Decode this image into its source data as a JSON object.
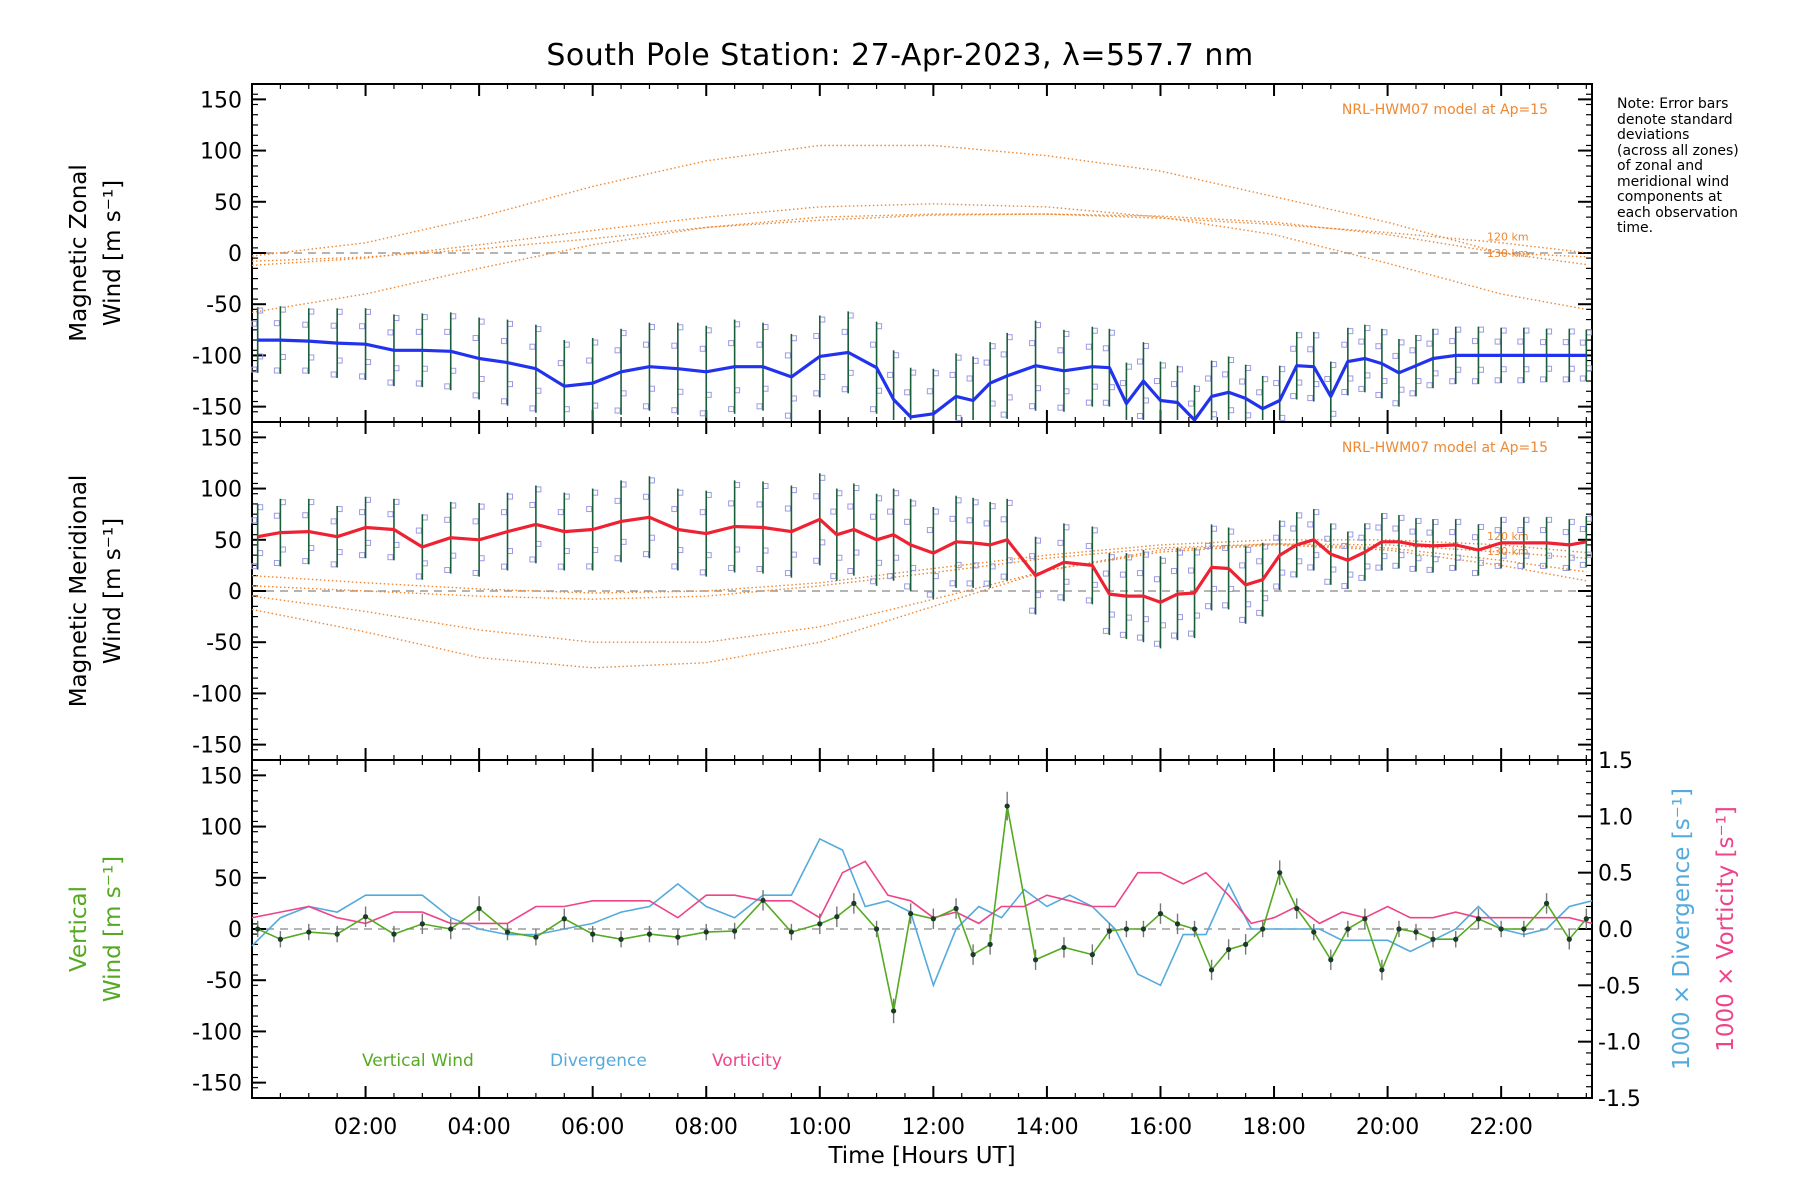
{
  "page": {
    "title": "South Pole Station: 27-Apr-2023, λ=557.7 nm",
    "note": "Note: Error bars\ndenote standard\ndeviations\n(across all zones)\nof zonal and\nmeridional wind\ncomponents at\neach observation\ntime."
  },
  "colors": {
    "zonal": "#2233ee",
    "meridional": "#ee2233",
    "vertical": "#55aa22",
    "divergence": "#55aadd",
    "vorticity": "#ee4488",
    "model": "#ee8833",
    "scatter": "#9a9ae8"
  },
  "chart_data": [
    {
      "type": "line",
      "id": "zonal",
      "ylabel": [
        "Magnetic Zonal",
        "Wind [m s⁻¹]"
      ],
      "ylim": [
        -165,
        165
      ],
      "yticks": [
        -150,
        -100,
        -50,
        0,
        50,
        100,
        150
      ],
      "model_label": "NRL-HWM07 model at Ap=15",
      "model_alt_labels": [
        "120 km",
        "130 km"
      ],
      "x": [
        0.1,
        0.5,
        1.0,
        1.5,
        2.0,
        2.5,
        3.0,
        3.5,
        4.0,
        4.5,
        5.0,
        5.5,
        6.0,
        6.5,
        7.0,
        7.5,
        8.0,
        8.5,
        9.0,
        9.5,
        10.0,
        10.5,
        11.0,
        11.3,
        11.6,
        12.0,
        12.4,
        12.7,
        13.0,
        13.3,
        13.8,
        14.3,
        14.8,
        15.1,
        15.4,
        15.7,
        16.0,
        16.3,
        16.6,
        16.9,
        17.2,
        17.5,
        17.8,
        18.1,
        18.4,
        18.7,
        19.0,
        19.3,
        19.6,
        19.9,
        20.2,
        20.5,
        20.8,
        21.2,
        21.6,
        22.0,
        22.4,
        22.8,
        23.2,
        23.5
      ],
      "series": [
        {
          "name": "Zonal wind",
          "values": [
            -85,
            -85,
            -86,
            -88,
            -89,
            -95,
            -95,
            -96,
            -103,
            -107,
            -113,
            -130,
            -127,
            -116,
            -111,
            -113,
            -116,
            -111,
            -111,
            -121,
            -101,
            -97,
            -112,
            -143,
            -160,
            -157,
            -140,
            -144,
            -127,
            -120,
            -110,
            -115,
            -111,
            -112,
            -147,
            -125,
            -144,
            -146,
            -165,
            -140,
            -136,
            -142,
            -152,
            -144,
            -110,
            -111,
            -140,
            -106,
            -103,
            -108,
            -117,
            -110,
            -103,
            -100,
            -100,
            -100,
            -100,
            -100,
            -100,
            -100
          ]
        }
      ],
      "error_bars": [
        32,
        33,
        32,
        34,
        35,
        35,
        36,
        38,
        40,
        42,
        43,
        45,
        44,
        42,
        43,
        45,
        45,
        46,
        43,
        42,
        40,
        40,
        45,
        48,
        48,
        44,
        42,
        43,
        40,
        42,
        44,
        40,
        39,
        38,
        40,
        38,
        38,
        36,
        36,
        35,
        35,
        33,
        32,
        34,
        33,
        34,
        34,
        33,
        33,
        34,
        33,
        30,
        29,
        28,
        28,
        27,
        27,
        26,
        26,
        25
      ],
      "model_curves": [
        {
          "name": "model zonal 1",
          "x": [
            0,
            2,
            4,
            6,
            8,
            10,
            12,
            14,
            16,
            18,
            20,
            22,
            24
          ],
          "values": [
            -3,
            10,
            35,
            65,
            90,
            105,
            105,
            95,
            80,
            55,
            30,
            0,
            -15
          ]
        },
        {
          "name": "model zonal 2",
          "x": [
            0,
            2,
            4,
            6,
            8,
            10,
            12,
            14,
            16,
            18,
            20,
            22,
            24
          ],
          "values": [
            -12,
            -5,
            8,
            22,
            35,
            45,
            48,
            45,
            35,
            18,
            -10,
            -40,
            -60
          ]
        },
        {
          "name": "model zonal 3 (120 km)",
          "x": [
            0,
            2,
            4,
            6,
            8,
            10,
            12,
            14,
            16,
            18,
            20,
            22,
            24
          ],
          "values": [
            -58,
            -40,
            -15,
            8,
            25,
            35,
            38,
            38,
            34,
            28,
            20,
            10,
            -3
          ]
        },
        {
          "name": "model zonal 4 (130 km)",
          "x": [
            0,
            2,
            4,
            6,
            8,
            10,
            12,
            14,
            16,
            18,
            20,
            22,
            24
          ],
          "values": [
            -8,
            -4,
            4,
            14,
            25,
            32,
            37,
            38,
            36,
            30,
            18,
            0,
            -5
          ]
        }
      ]
    },
    {
      "type": "line",
      "id": "meridional",
      "ylabel": [
        "Magnetic Meridional",
        "Wind [m s⁻¹]"
      ],
      "ylim": [
        -165,
        165
      ],
      "yticks": [
        -150,
        -100,
        -50,
        0,
        50,
        100,
        150
      ],
      "model_label": "NRL-HWM07 model at Ap=15",
      "model_alt_labels": [
        "120 km",
        "130 km"
      ],
      "x": [
        0.1,
        0.5,
        1.0,
        1.5,
        2.0,
        2.5,
        3.0,
        3.5,
        4.0,
        4.5,
        5.0,
        5.5,
        6.0,
        6.5,
        7.0,
        7.5,
        8.0,
        8.5,
        9.0,
        9.5,
        10.0,
        10.3,
        10.6,
        11.0,
        11.3,
        11.6,
        12.0,
        12.4,
        12.7,
        13.0,
        13.3,
        13.8,
        14.3,
        14.8,
        15.1,
        15.4,
        15.7,
        16.0,
        16.3,
        16.6,
        16.9,
        17.2,
        17.5,
        17.8,
        18.1,
        18.4,
        18.7,
        19.0,
        19.3,
        19.6,
        19.9,
        20.2,
        20.5,
        20.8,
        21.2,
        21.6,
        22.0,
        22.4,
        22.8,
        23.2,
        23.5
      ],
      "series": [
        {
          "name": "Meridional wind",
          "values": [
            53,
            57,
            58,
            53,
            62,
            60,
            43,
            52,
            50,
            58,
            65,
            58,
            60,
            68,
            72,
            60,
            56,
            63,
            62,
            58,
            70,
            55,
            60,
            50,
            55,
            45,
            37,
            48,
            47,
            45,
            50,
            15,
            28,
            25,
            -3,
            -5,
            -5,
            -11,
            -3,
            -2,
            23,
            22,
            6,
            11,
            35,
            45,
            50,
            36,
            30,
            38,
            48,
            48,
            45,
            44,
            45,
            40,
            47,
            47,
            47,
            45,
            48
          ]
        }
      ],
      "error_bars": [
        32,
        33,
        32,
        30,
        30,
        30,
        32,
        35,
        36,
        38,
        38,
        38,
        40,
        40,
        40,
        40,
        42,
        45,
        45,
        45,
        45,
        45,
        45,
        45,
        45,
        45,
        45,
        45,
        44,
        42,
        40,
        38,
        38,
        38,
        40,
        42,
        45,
        45,
        45,
        44,
        42,
        40,
        38,
        36,
        34,
        32,
        30,
        30,
        28,
        28,
        28,
        26,
        26,
        26,
        25,
        25,
        25,
        25,
        25,
        25,
        25
      ],
      "model_curves": [
        {
          "name": "model meridional 1",
          "x": [
            0,
            2,
            4,
            6,
            8,
            10,
            12,
            14,
            16,
            18,
            20,
            22,
            24
          ],
          "values": [
            -5,
            -20,
            -38,
            -50,
            -50,
            -35,
            -8,
            20,
            38,
            45,
            40,
            25,
            5
          ]
        },
        {
          "name": "model meridional 2",
          "x": [
            0,
            2,
            4,
            6,
            8,
            10,
            12,
            14,
            16,
            18,
            20,
            22,
            24
          ],
          "values": [
            -18,
            -40,
            -65,
            -75,
            -70,
            -50,
            -15,
            20,
            40,
            46,
            42,
            30,
            15
          ]
        },
        {
          "name": "model meridional 3 (120 km)",
          "x": [
            0,
            2,
            4,
            6,
            8,
            10,
            12,
            14,
            16,
            18,
            20,
            22,
            24
          ],
          "values": [
            5,
            0,
            -5,
            -8,
            -5,
            5,
            18,
            32,
            42,
            46,
            45,
            38,
            30
          ]
        },
        {
          "name": "model meridional 4 (130 km)",
          "x": [
            0,
            2,
            4,
            6,
            8,
            10,
            12,
            14,
            16,
            18,
            20,
            22,
            24
          ],
          "values": [
            15,
            8,
            2,
            -2,
            0,
            8,
            22,
            35,
            45,
            50,
            50,
            45,
            35
          ]
        }
      ]
    },
    {
      "type": "line",
      "id": "vertical",
      "ylabel": [
        "Vertical",
        "Wind [m s⁻¹]"
      ],
      "ylim": [
        -165,
        165
      ],
      "yticks": [
        -150,
        -100,
        -50,
        0,
        50,
        100,
        150
      ],
      "y2label": [
        "1000 × Divergence [s⁻¹]",
        "1000 × Vorticity [s⁻¹]"
      ],
      "y2lim": [
        -1.5,
        1.5
      ],
      "y2ticks": [
        -1.5,
        -1.0,
        -0.5,
        0.0,
        0.5,
        1.0,
        1.5
      ],
      "xlabel": "Time [Hours UT]",
      "xlim": [
        0,
        23.6
      ],
      "xticks": [
        2,
        4,
        6,
        8,
        10,
        12,
        14,
        16,
        18,
        20,
        22
      ],
      "xticklabels": [
        "02:00",
        "04:00",
        "06:00",
        "08:00",
        "10:00",
        "12:00",
        "14:00",
        "16:00",
        "18:00",
        "20:00",
        "22:00"
      ],
      "legend": [
        "Vertical Wind",
        "Divergence",
        "Vorticity"
      ],
      "series": [
        {
          "name": "Vertical Wind",
          "x": [
            0.1,
            0.5,
            1.0,
            1.5,
            2.0,
            2.5,
            3.0,
            3.5,
            4.0,
            4.5,
            5.0,
            5.5,
            6.0,
            6.5,
            7.0,
            7.5,
            8.0,
            8.5,
            9.0,
            9.5,
            10.0,
            10.3,
            10.6,
            11.0,
            11.3,
            11.6,
            12.0,
            12.4,
            12.7,
            13.0,
            13.3,
            13.8,
            14.3,
            14.8,
            15.1,
            15.4,
            15.7,
            16.0,
            16.3,
            16.6,
            16.9,
            17.2,
            17.5,
            17.8,
            18.1,
            18.4,
            18.7,
            19.0,
            19.3,
            19.6,
            19.9,
            20.2,
            20.5,
            20.8,
            21.2,
            21.6,
            22.0,
            22.4,
            22.8,
            23.2,
            23.5
          ],
          "values": [
            0,
            -10,
            -3,
            -5,
            12,
            -5,
            5,
            0,
            20,
            -3,
            -8,
            10,
            -5,
            -10,
            -5,
            -8,
            -3,
            -2,
            28,
            -3,
            5,
            12,
            25,
            0,
            -80,
            15,
            10,
            20,
            -25,
            -15,
            120,
            -30,
            -18,
            -25,
            -2,
            0,
            0,
            15,
            5,
            0,
            -40,
            -20,
            -15,
            0,
            55,
            20,
            -3,
            -30,
            0,
            10,
            -40,
            0,
            -3,
            -10,
            -10,
            10,
            0,
            0,
            25,
            -10,
            10
          ],
          "errors": [
            8,
            8,
            8,
            8,
            10,
            8,
            10,
            10,
            12,
            8,
            8,
            10,
            8,
            8,
            8,
            8,
            8,
            8,
            10,
            8,
            10,
            10,
            10,
            8,
            12,
            10,
            10,
            10,
            10,
            10,
            14,
            10,
            10,
            10,
            8,
            8,
            8,
            10,
            10,
            8,
            10,
            10,
            10,
            8,
            12,
            10,
            8,
            10,
            8,
            10,
            10,
            8,
            8,
            8,
            8,
            10,
            8,
            8,
            10,
            10,
            10
          ]
        },
        {
          "name": "Divergence",
          "x": [
            0,
            0.5,
            1.0,
            1.5,
            2.0,
            2.5,
            3.0,
            3.5,
            4.0,
            4.5,
            5.0,
            5.5,
            6.0,
            6.5,
            7.0,
            7.5,
            8.0,
            8.5,
            9.0,
            9.5,
            10.0,
            10.4,
            10.8,
            11.2,
            11.6,
            12.0,
            12.4,
            12.8,
            13.2,
            13.6,
            14.0,
            14.4,
            14.8,
            15.2,
            15.6,
            16.0,
            16.4,
            16.8,
            17.2,
            17.6,
            18.0,
            18.4,
            18.8,
            19.2,
            19.6,
            20.0,
            20.4,
            20.8,
            21.2,
            21.6,
            22.0,
            22.4,
            22.8,
            23.2,
            23.6
          ],
          "values": [
            -0.15,
            0.1,
            0.2,
            0.15,
            0.3,
            0.3,
            0.3,
            0.1,
            0.0,
            -0.05,
            -0.05,
            0.0,
            0.05,
            0.15,
            0.2,
            0.4,
            0.2,
            0.1,
            0.3,
            0.3,
            0.8,
            0.7,
            0.2,
            0.25,
            0.15,
            -0.5,
            0.0,
            0.2,
            0.1,
            0.35,
            0.2,
            0.3,
            0.2,
            0.0,
            -0.4,
            -0.5,
            -0.05,
            -0.05,
            0.4,
            0.0,
            0.0,
            0.0,
            0.0,
            -0.1,
            -0.1,
            -0.1,
            -0.2,
            -0.1,
            0.0,
            0.2,
            0.0,
            -0.05,
            0.0,
            0.2,
            0.25
          ]
        },
        {
          "name": "Vorticity",
          "x": [
            0,
            0.5,
            1.0,
            1.5,
            2.0,
            2.5,
            3.0,
            3.5,
            4.0,
            4.5,
            5.0,
            5.5,
            6.0,
            6.5,
            7.0,
            7.5,
            8.0,
            8.5,
            9.0,
            9.5,
            10.0,
            10.4,
            10.8,
            11.2,
            11.6,
            12.0,
            12.4,
            12.8,
            13.2,
            13.6,
            14.0,
            14.4,
            14.8,
            15.2,
            15.6,
            16.0,
            16.4,
            16.8,
            17.2,
            17.6,
            18.0,
            18.4,
            18.8,
            19.2,
            19.6,
            20.0,
            20.4,
            20.8,
            21.2,
            21.6,
            22.0,
            22.4,
            22.8,
            23.2,
            23.6
          ],
          "values": [
            0.1,
            0.15,
            0.2,
            0.1,
            0.05,
            0.15,
            0.15,
            0.05,
            0.05,
            0.05,
            0.2,
            0.2,
            0.25,
            0.25,
            0.25,
            0.1,
            0.3,
            0.3,
            0.25,
            0.25,
            0.1,
            0.5,
            0.6,
            0.3,
            0.25,
            0.1,
            0.15,
            0.05,
            0.2,
            0.2,
            0.3,
            0.25,
            0.2,
            0.2,
            0.5,
            0.5,
            0.4,
            0.5,
            0.3,
            0.05,
            0.1,
            0.2,
            0.05,
            0.15,
            0.1,
            0.2,
            0.1,
            0.1,
            0.15,
            0.1,
            0.1,
            0.1,
            0.1,
            0.1,
            0.05
          ]
        }
      ]
    }
  ]
}
